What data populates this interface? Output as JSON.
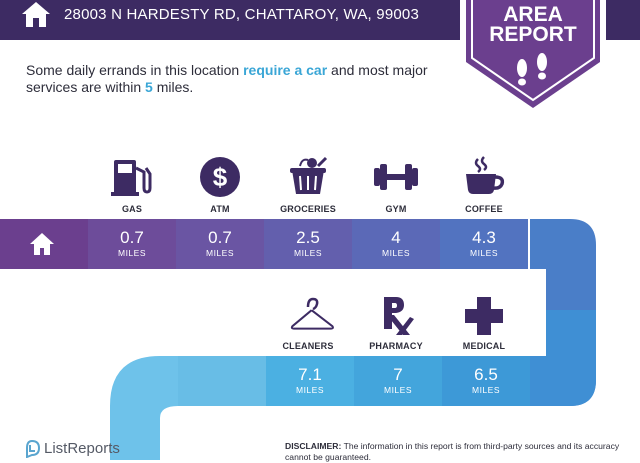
{
  "header": {
    "address": "28003 N HARDESTY RD, CHATTAROY, WA, 99003"
  },
  "badge": {
    "line1": "AREA",
    "line2": "REPORT"
  },
  "intro": {
    "part1": "Some daily errands in this location ",
    "highlight1": "require a car",
    "part2": " and most major services are within ",
    "highlight2": "5",
    "part3": " miles."
  },
  "row1": [
    {
      "label": "GAS",
      "value": "0.7",
      "unit": "MILES",
      "icon": "gas-pump-icon"
    },
    {
      "label": "ATM",
      "value": "0.7",
      "unit": "MILES",
      "icon": "dollar-icon"
    },
    {
      "label": "GROCERIES",
      "value": "2.5",
      "unit": "MILES",
      "icon": "grocery-basket-icon"
    },
    {
      "label": "GYM",
      "value": "4",
      "unit": "MILES",
      "icon": "dumbbell-icon"
    },
    {
      "label": "COFFEE",
      "value": "4.3",
      "unit": "MILES",
      "icon": "coffee-cup-icon"
    }
  ],
  "row2": [
    {
      "label": "CLEANERS",
      "value": "7.1",
      "unit": "MILES",
      "icon": "hanger-icon"
    },
    {
      "label": "PHARMACY",
      "value": "7",
      "unit": "MILES",
      "icon": "rx-icon"
    },
    {
      "label": "MEDICAL",
      "value": "6.5",
      "unit": "MILES",
      "icon": "medical-cross-icon"
    }
  ],
  "footer": {
    "brand": "ListReports",
    "disclaimer_label": "DISCLAIMER:",
    "disclaimer_text": " The information in this report is from third-party sources and its accuracy cannot be guaranteed."
  },
  "colors": {
    "header": "#3d2b63",
    "badge": "#6b3f8e",
    "highlight": "#3aa6d6"
  }
}
